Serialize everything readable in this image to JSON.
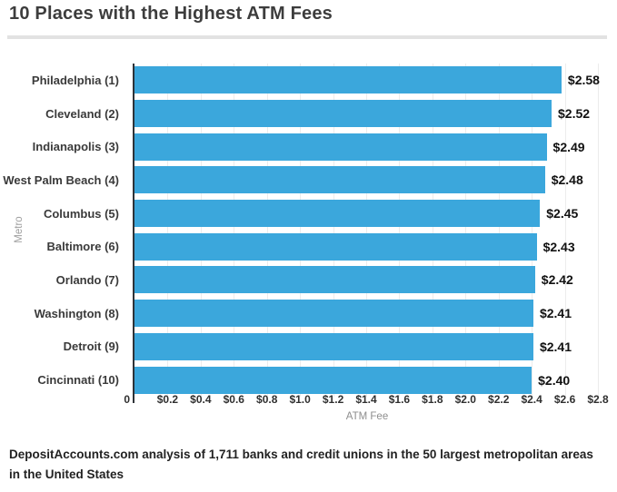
{
  "page": {
    "title": "10 Places with the Highest ATM Fees",
    "footer": "DepositAccounts.com analysis of 1,711 banks and credit unions in the 50 largest metropolitan areas in the United States"
  },
  "chart_data": {
    "type": "bar",
    "orientation": "horizontal",
    "title": "10 Places with the Highest ATM Fees",
    "categories": [
      "Philadelphia (1)",
      "Cleveland (2)",
      "Indianapolis (3)",
      "West Palm Beach (4)",
      "Columbus (5)",
      "Baltimore (6)",
      "Orlando (7)",
      "Washington (8)",
      "Detroit (9)",
      "Cincinnati (10)"
    ],
    "values": [
      2.58,
      2.52,
      2.49,
      2.48,
      2.45,
      2.43,
      2.42,
      2.41,
      2.41,
      2.4
    ],
    "value_labels": [
      "$2.58",
      "$2.52",
      "$2.49",
      "$2.48",
      "$2.45",
      "$2.43",
      "$2.42",
      "$2.41",
      "$2.41",
      "$2.40"
    ],
    "xlabel": "ATM Fee",
    "ylabel": "Metro",
    "xlim": [
      0,
      2.8
    ],
    "xticks": [
      0,
      0.2,
      0.4,
      0.6,
      0.8,
      1.0,
      1.2,
      1.4,
      1.6,
      1.8,
      2.0,
      2.2,
      2.4,
      2.6,
      2.8
    ],
    "xtick_labels": [
      "0",
      "$0.2",
      "$0.4",
      "$0.6",
      "$0.8",
      "$1.0",
      "$1.2",
      "$1.4",
      "$1.6",
      "$1.8",
      "$2.0",
      "$2.2",
      "$2.4",
      "$2.6",
      "$2.8"
    ],
    "grid": "vertical",
    "legend": "none",
    "bar_color": "#3BA7DC"
  },
  "colors": {
    "bar": "#3BA7DC",
    "axis_line": "#2e3338",
    "gridline": "#ececec",
    "title_text": "#3d3d3d",
    "divider": "#e2e2e2",
    "value_text": "#111111",
    "axis_title_text": "#8e8e8e"
  }
}
